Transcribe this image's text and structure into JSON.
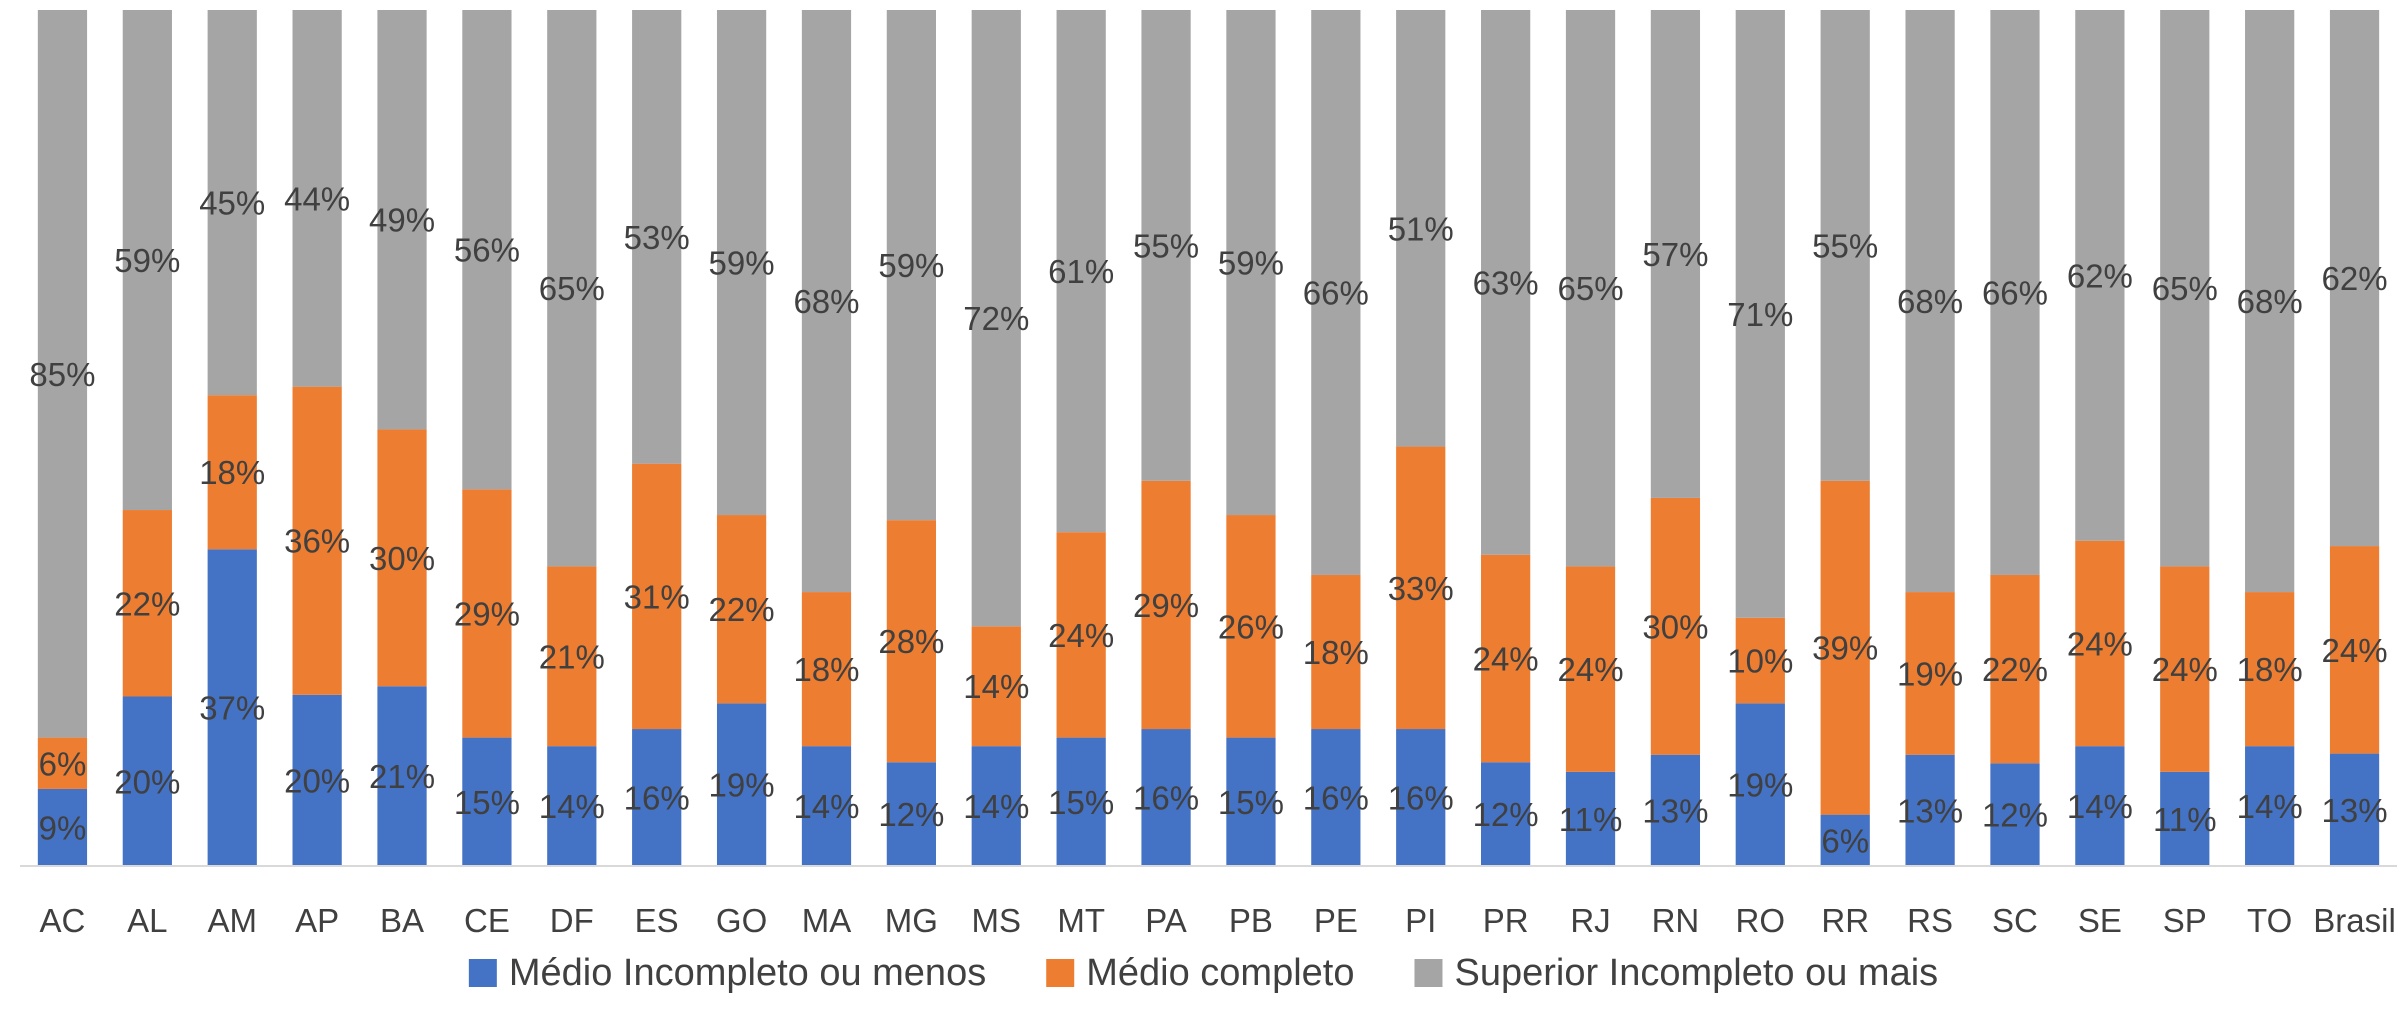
{
  "chart_data": {
    "type": "bar",
    "stacked": true,
    "percent_stacked": true,
    "categories": [
      "AC",
      "AL",
      "AM",
      "AP",
      "BA",
      "CE",
      "DF",
      "ES",
      "GO",
      "MA",
      "MG",
      "MS",
      "MT",
      "PA",
      "PB",
      "PE",
      "PI",
      "PR",
      "RJ",
      "RN",
      "RO",
      "RR",
      "RS",
      "SC",
      "SE",
      "SP",
      "TO",
      "Brasil"
    ],
    "series": [
      {
        "name": "Médio Incompleto ou menos",
        "color": "#4472C4",
        "values": [
          9,
          20,
          37,
          20,
          21,
          15,
          14,
          16,
          19,
          14,
          12,
          14,
          15,
          16,
          15,
          16,
          16,
          12,
          11,
          13,
          19,
          6,
          13,
          12,
          14,
          11,
          14,
          13
        ]
      },
      {
        "name": "Médio completo",
        "color": "#ED7D31",
        "values": [
          6,
          22,
          18,
          36,
          30,
          29,
          21,
          31,
          22,
          18,
          28,
          14,
          24,
          29,
          26,
          18,
          33,
          24,
          24,
          30,
          10,
          39,
          19,
          22,
          24,
          24,
          18,
          24
        ]
      },
      {
        "name": "Superior Incompleto ou mais",
        "color": "#A5A5A5",
        "values": [
          85,
          59,
          45,
          44,
          49,
          56,
          65,
          53,
          59,
          68,
          59,
          72,
          61,
          55,
          59,
          66,
          51,
          63,
          65,
          57,
          71,
          55,
          68,
          66,
          62,
          65,
          68,
          62
        ]
      }
    ],
    "ylim": [
      0,
      100
    ],
    "grid": false,
    "legend_position": "bottom",
    "label_suffix": "%"
  }
}
